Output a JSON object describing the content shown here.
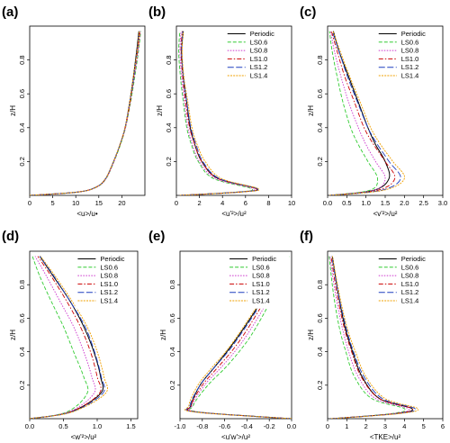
{
  "figure": {
    "legend_entries": [
      "Periodic",
      "LS0.6",
      "LS0.8",
      "LS1.0",
      "LS1.2",
      "LS1.4"
    ],
    "series_colors": [
      "#000000",
      "#33cc33",
      "#cc33cc",
      "#cc0000",
      "#1f3fbf",
      "#f0a000"
    ],
    "series_dash": [
      "",
      "4,2",
      "1.5,1.5",
      "5,2,1.5,2",
      "7,2.5",
      "2,1.2"
    ]
  },
  "chart_data": [
    {
      "type": "line",
      "panel": "(a)",
      "xlabel": "<u>/u•",
      "ylabel": "z/H",
      "xlim": [
        0,
        25
      ],
      "ylim": [
        0,
        1
      ],
      "xticks": [
        "0",
        "5",
        "10",
        "15",
        "20"
      ],
      "yticks": [
        "0.2",
        "0.4",
        "0.6",
        "0.8"
      ],
      "legend": false,
      "series": [
        {
          "name": "Periodic",
          "x": [
            0,
            10.5,
            14.5,
            16.5,
            18.2,
            19.6,
            20.7,
            21.7,
            22.5,
            23.2,
            23.7
          ],
          "y": [
            0.0,
            0.02,
            0.05,
            0.1,
            0.2,
            0.3,
            0.4,
            0.55,
            0.7,
            0.85,
            0.97
          ]
        },
        {
          "name": "LS0.6",
          "x": [
            0,
            10.6,
            14.6,
            16.6,
            18.3,
            19.7,
            20.8,
            21.9,
            22.8,
            23.6,
            24.1
          ],
          "y": [
            0.0,
            0.02,
            0.05,
            0.1,
            0.2,
            0.3,
            0.4,
            0.55,
            0.7,
            0.85,
            0.97
          ]
        },
        {
          "name": "LS0.8",
          "x": [
            0,
            10.6,
            14.6,
            16.6,
            18.3,
            19.6,
            20.8,
            21.8,
            22.7,
            23.5,
            24.0
          ],
          "y": [
            0.0,
            0.02,
            0.05,
            0.1,
            0.2,
            0.3,
            0.4,
            0.55,
            0.7,
            0.85,
            0.97
          ]
        },
        {
          "name": "LS1.0",
          "x": [
            0,
            10.5,
            14.5,
            16.5,
            18.2,
            19.6,
            20.7,
            21.8,
            22.6,
            23.4,
            23.9
          ],
          "y": [
            0.0,
            0.02,
            0.05,
            0.1,
            0.2,
            0.3,
            0.4,
            0.55,
            0.7,
            0.85,
            0.97
          ]
        },
        {
          "name": "LS1.2",
          "x": [
            0,
            10.5,
            14.5,
            16.5,
            18.2,
            19.6,
            20.7,
            21.7,
            22.6,
            23.3,
            23.8
          ],
          "y": [
            0.0,
            0.02,
            0.05,
            0.1,
            0.2,
            0.3,
            0.4,
            0.55,
            0.7,
            0.85,
            0.97
          ]
        },
        {
          "name": "LS1.4",
          "x": [
            0,
            10.5,
            14.5,
            16.5,
            18.2,
            19.6,
            20.7,
            21.7,
            22.5,
            23.3,
            23.8
          ],
          "y": [
            0.0,
            0.02,
            0.05,
            0.1,
            0.2,
            0.3,
            0.4,
            0.55,
            0.7,
            0.85,
            0.97
          ]
        }
      ]
    },
    {
      "type": "line",
      "panel": "(b)",
      "xlabel": "<u'²>/u²",
      "ylabel": "z/H",
      "xlim": [
        0,
        10
      ],
      "ylim": [
        0,
        1
      ],
      "xticks": [
        "0",
        "2",
        "4",
        "6",
        "8",
        "10"
      ],
      "yticks": [
        "0.2",
        "0.4",
        "0.6",
        "0.8"
      ],
      "legend": true,
      "series": [
        {
          "name": "Periodic",
          "x": [
            0.3,
            5.5,
            7.0,
            3.6,
            2.2,
            1.6,
            1.2,
            0.9,
            0.6,
            0.45,
            0.6
          ],
          "y": [
            0.0,
            0.02,
            0.04,
            0.1,
            0.2,
            0.3,
            0.4,
            0.55,
            0.7,
            0.85,
            0.97
          ]
        },
        {
          "name": "LS0.6",
          "x": [
            0.3,
            5.3,
            6.5,
            3.2,
            1.9,
            1.3,
            0.9,
            0.6,
            0.35,
            0.2,
            0.3
          ],
          "y": [
            0.0,
            0.02,
            0.04,
            0.1,
            0.2,
            0.3,
            0.4,
            0.55,
            0.7,
            0.85,
            0.97
          ]
        },
        {
          "name": "LS0.8",
          "x": [
            0.3,
            5.4,
            6.7,
            3.4,
            2.0,
            1.4,
            1.0,
            0.7,
            0.45,
            0.3,
            0.4
          ],
          "y": [
            0.0,
            0.02,
            0.04,
            0.1,
            0.2,
            0.3,
            0.4,
            0.55,
            0.7,
            0.85,
            0.97
          ]
        },
        {
          "name": "LS1.0",
          "x": [
            0.3,
            5.5,
            6.9,
            3.6,
            2.2,
            1.6,
            1.15,
            0.8,
            0.55,
            0.4,
            0.5
          ],
          "y": [
            0.0,
            0.02,
            0.04,
            0.1,
            0.2,
            0.3,
            0.4,
            0.55,
            0.7,
            0.85,
            0.97
          ]
        },
        {
          "name": "LS1.2",
          "x": [
            0.3,
            5.6,
            7.0,
            3.7,
            2.3,
            1.7,
            1.25,
            0.9,
            0.6,
            0.45,
            0.55
          ],
          "y": [
            0.0,
            0.02,
            0.04,
            0.1,
            0.2,
            0.3,
            0.4,
            0.55,
            0.7,
            0.85,
            0.97
          ]
        },
        {
          "name": "LS1.4",
          "x": [
            0.3,
            5.7,
            7.1,
            3.9,
            2.5,
            1.8,
            1.35,
            1.0,
            0.65,
            0.5,
            0.6
          ],
          "y": [
            0.0,
            0.02,
            0.04,
            0.1,
            0.2,
            0.3,
            0.4,
            0.55,
            0.7,
            0.85,
            0.97
          ]
        }
      ]
    },
    {
      "type": "line",
      "panel": "(c)",
      "xlabel": "<v'²>/u²",
      "ylabel": "z/H",
      "xlim": [
        0,
        3
      ],
      "ylim": [
        0,
        1
      ],
      "xticks": [
        "0.0",
        "0.5",
        "1.0",
        "1.5",
        "2.0",
        "2.5",
        "3.0"
      ],
      "yticks": [
        "0.2",
        "0.4",
        "0.6",
        "0.8"
      ],
      "legend": true,
      "series": [
        {
          "name": "Periodic",
          "x": [
            0.05,
            1.2,
            1.6,
            1.5,
            1.25,
            1.05,
            0.8,
            0.55,
            0.3,
            0.15
          ],
          "y": [
            0.0,
            0.03,
            0.1,
            0.2,
            0.3,
            0.4,
            0.55,
            0.7,
            0.85,
            0.97
          ]
        },
        {
          "name": "LS0.6",
          "x": [
            0.05,
            1.1,
            1.3,
            1.05,
            0.8,
            0.6,
            0.4,
            0.25,
            0.12,
            0.05
          ],
          "y": [
            0.0,
            0.03,
            0.1,
            0.2,
            0.3,
            0.4,
            0.55,
            0.7,
            0.85,
            0.97
          ]
        },
        {
          "name": "LS0.8",
          "x": [
            0.05,
            1.2,
            1.5,
            1.25,
            1.0,
            0.8,
            0.55,
            0.35,
            0.18,
            0.08
          ],
          "y": [
            0.0,
            0.03,
            0.1,
            0.2,
            0.3,
            0.4,
            0.55,
            0.7,
            0.85,
            0.97
          ]
        },
        {
          "name": "LS1.0",
          "x": [
            0.05,
            1.3,
            1.75,
            1.5,
            1.2,
            0.95,
            0.7,
            0.45,
            0.25,
            0.1
          ],
          "y": [
            0.0,
            0.03,
            0.1,
            0.2,
            0.3,
            0.4,
            0.55,
            0.7,
            0.85,
            0.97
          ]
        },
        {
          "name": "LS1.2",
          "x": [
            0.05,
            1.4,
            1.9,
            1.6,
            1.3,
            1.05,
            0.78,
            0.52,
            0.3,
            0.12
          ],
          "y": [
            0.0,
            0.03,
            0.1,
            0.2,
            0.3,
            0.4,
            0.55,
            0.7,
            0.85,
            0.97
          ]
        },
        {
          "name": "LS1.4",
          "x": [
            0.05,
            1.45,
            2.0,
            1.7,
            1.38,
            1.12,
            0.85,
            0.58,
            0.33,
            0.14
          ],
          "y": [
            0.0,
            0.03,
            0.1,
            0.2,
            0.3,
            0.4,
            0.55,
            0.7,
            0.85,
            0.97
          ]
        }
      ]
    },
    {
      "type": "line",
      "panel": "(d)",
      "xlabel": "<w'²>/u²",
      "ylabel": "z/H",
      "xlim": [
        0,
        1.6
      ],
      "ylim": [
        0,
        1
      ],
      "xticks": [
        "0.0",
        "0.5",
        "1.0",
        "1.5"
      ],
      "yticks": [
        "0.2",
        "0.4",
        "0.6",
        "0.8"
      ],
      "legend": true,
      "series": [
        {
          "name": "Periodic",
          "x": [
            0.0,
            0.6,
            1.05,
            1.05,
            0.95,
            0.8,
            0.6,
            0.35,
            0.15
          ],
          "y": [
            0.0,
            0.04,
            0.15,
            0.25,
            0.4,
            0.55,
            0.7,
            0.85,
            0.97
          ]
        },
        {
          "name": "LS0.6",
          "x": [
            0.0,
            0.55,
            0.85,
            0.8,
            0.65,
            0.5,
            0.32,
            0.15,
            0.04
          ],
          "y": [
            0.0,
            0.04,
            0.15,
            0.25,
            0.4,
            0.55,
            0.7,
            0.85,
            0.97
          ]
        },
        {
          "name": "LS0.8",
          "x": [
            0.0,
            0.58,
            0.95,
            0.92,
            0.8,
            0.65,
            0.45,
            0.25,
            0.08
          ],
          "y": [
            0.0,
            0.04,
            0.15,
            0.25,
            0.4,
            0.55,
            0.7,
            0.85,
            0.97
          ]
        },
        {
          "name": "LS1.0",
          "x": [
            0.0,
            0.6,
            1.03,
            1.0,
            0.9,
            0.75,
            0.55,
            0.32,
            0.12
          ],
          "y": [
            0.0,
            0.04,
            0.15,
            0.25,
            0.4,
            0.55,
            0.7,
            0.85,
            0.97
          ]
        },
        {
          "name": "LS1.2",
          "x": [
            0.0,
            0.62,
            1.08,
            1.06,
            0.96,
            0.82,
            0.6,
            0.36,
            0.15
          ],
          "y": [
            0.0,
            0.04,
            0.15,
            0.25,
            0.4,
            0.55,
            0.7,
            0.85,
            0.97
          ]
        },
        {
          "name": "LS1.4",
          "x": [
            0.0,
            0.63,
            1.12,
            1.1,
            1.0,
            0.85,
            0.63,
            0.38,
            0.16
          ],
          "y": [
            0.0,
            0.04,
            0.15,
            0.25,
            0.4,
            0.55,
            0.7,
            0.85,
            0.97
          ]
        }
      ]
    },
    {
      "type": "line",
      "panel": "(e)",
      "xlabel": "<u'w'>/u²",
      "ylabel": "z/H",
      "xlim": [
        -1.0,
        0.0
      ],
      "ylim": [
        0,
        1
      ],
      "xticks": [
        "-1.0",
        "-0.8",
        "-0.6",
        "-0.4",
        "-0.2",
        "0.0"
      ],
      "yticks": [
        "0.2",
        "0.4",
        "0.6",
        "0.8"
      ],
      "legend": true,
      "series": [
        {
          "name": "Periodic",
          "x": [
            0.0,
            -0.85,
            -0.9,
            -0.82,
            -0.7,
            -0.58,
            -0.47,
            -0.32,
            -0.18,
            -0.04
          ],
          "y": [
            0.0,
            0.04,
            0.08,
            0.2,
            0.3,
            0.4,
            0.5,
            0.65,
            0.8,
            0.97
          ]
        },
        {
          "name": "LS0.6",
          "x": [
            0.0,
            -0.83,
            -0.88,
            -0.75,
            -0.6,
            -0.47,
            -0.36,
            -0.23,
            -0.12,
            -0.02
          ],
          "y": [
            0.0,
            0.04,
            0.08,
            0.2,
            0.3,
            0.4,
            0.5,
            0.65,
            0.8,
            0.97
          ]
        },
        {
          "name": "LS0.8",
          "x": [
            0.0,
            -0.84,
            -0.89,
            -0.78,
            -0.64,
            -0.51,
            -0.4,
            -0.26,
            -0.14,
            -0.03
          ],
          "y": [
            0.0,
            0.04,
            0.08,
            0.2,
            0.3,
            0.4,
            0.5,
            0.65,
            0.8,
            0.97
          ]
        },
        {
          "name": "LS1.0",
          "x": [
            0.0,
            -0.85,
            -0.9,
            -0.8,
            -0.67,
            -0.54,
            -0.43,
            -0.29,
            -0.16,
            -0.03
          ],
          "y": [
            0.0,
            0.04,
            0.08,
            0.2,
            0.3,
            0.4,
            0.5,
            0.65,
            0.8,
            0.97
          ]
        },
        {
          "name": "LS1.2",
          "x": [
            0.0,
            -0.86,
            -0.91,
            -0.82,
            -0.7,
            -0.57,
            -0.46,
            -0.31,
            -0.17,
            -0.04
          ],
          "y": [
            0.0,
            0.04,
            0.08,
            0.2,
            0.3,
            0.4,
            0.5,
            0.65,
            0.8,
            0.97
          ]
        },
        {
          "name": "LS1.4",
          "x": [
            0.0,
            -0.87,
            -0.92,
            -0.84,
            -0.72,
            -0.59,
            -0.48,
            -0.33,
            -0.18,
            -0.04
          ],
          "y": [
            0.0,
            0.04,
            0.08,
            0.2,
            0.3,
            0.4,
            0.5,
            0.65,
            0.8,
            0.97
          ]
        }
      ]
    },
    {
      "type": "line",
      "panel": "(f)",
      "xlabel": "<TKE>/u²",
      "ylabel": "z/H",
      "xlim": [
        0,
        6
      ],
      "ylim": [
        0,
        1
      ],
      "xticks": [
        "0",
        "1",
        "2",
        "3",
        "4",
        "5",
        "6"
      ],
      "yticks": [
        "0.2",
        "0.4",
        "0.6",
        "0.8"
      ],
      "legend": true,
      "series": [
        {
          "name": "Periodic",
          "x": [
            0.2,
            3.5,
            4.4,
            2.7,
            1.8,
            1.3,
            0.9,
            0.55,
            0.25
          ],
          "y": [
            0.0,
            0.03,
            0.06,
            0.12,
            0.25,
            0.4,
            0.55,
            0.75,
            0.97
          ]
        },
        {
          "name": "LS0.6",
          "x": [
            0.2,
            3.3,
            4.0,
            2.3,
            1.4,
            0.95,
            0.6,
            0.3,
            0.08
          ],
          "y": [
            0.0,
            0.03,
            0.06,
            0.12,
            0.25,
            0.4,
            0.55,
            0.75,
            0.97
          ]
        },
        {
          "name": "LS0.8",
          "x": [
            0.2,
            3.4,
            4.2,
            2.5,
            1.6,
            1.1,
            0.75,
            0.4,
            0.12
          ],
          "y": [
            0.0,
            0.03,
            0.06,
            0.12,
            0.25,
            0.4,
            0.55,
            0.75,
            0.97
          ]
        },
        {
          "name": "LS1.0",
          "x": [
            0.2,
            3.5,
            4.4,
            2.7,
            1.75,
            1.25,
            0.85,
            0.48,
            0.18
          ],
          "y": [
            0.0,
            0.03,
            0.06,
            0.12,
            0.25,
            0.4,
            0.55,
            0.75,
            0.97
          ]
        },
        {
          "name": "LS1.2",
          "x": [
            0.2,
            3.6,
            4.55,
            2.85,
            1.9,
            1.35,
            0.95,
            0.55,
            0.22
          ],
          "y": [
            0.0,
            0.03,
            0.06,
            0.12,
            0.25,
            0.4,
            0.55,
            0.75,
            0.97
          ]
        },
        {
          "name": "LS1.4",
          "x": [
            0.2,
            3.7,
            4.7,
            3.0,
            2.0,
            1.45,
            1.0,
            0.6,
            0.25
          ],
          "y": [
            0.0,
            0.03,
            0.06,
            0.12,
            0.25,
            0.4,
            0.55,
            0.75,
            0.97
          ]
        }
      ]
    }
  ]
}
